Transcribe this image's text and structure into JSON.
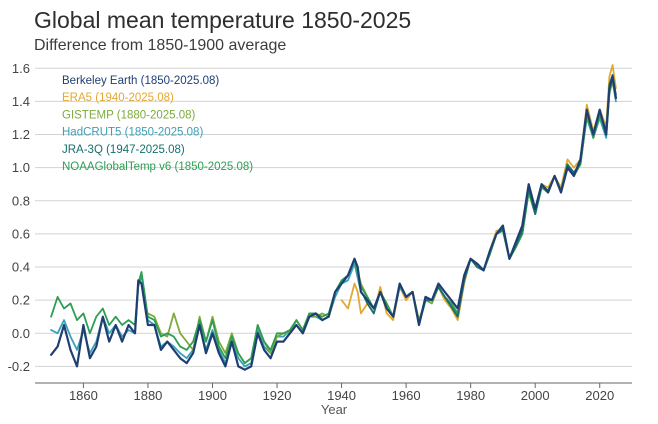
{
  "chart_data": {
    "type": "line",
    "title": "Global mean temperature 1850-2025",
    "subtitle": "Difference from 1850-1900 average",
    "xlabel": "Year",
    "ylabel": "",
    "xlim": [
      1845,
      2030
    ],
    "ylim": [
      -0.3,
      1.65
    ],
    "x_ticks": [
      1860,
      1880,
      1900,
      1920,
      1940,
      1960,
      1980,
      2000,
      2020
    ],
    "y_ticks": [
      -0.2,
      0.0,
      0.2,
      0.4,
      0.6,
      0.8,
      1.0,
      1.2,
      1.4,
      1.6
    ],
    "y_tick_labels": [
      "-0.2",
      "0.0",
      "0.2",
      "0.4",
      "0.6",
      "0.8",
      "1.0",
      "1.2",
      "1.4",
      "1.6"
    ],
    "grid": "horizontal",
    "legend_position": "top-left",
    "series": [
      {
        "name": "Berkeley Earth (1850-2025.08)",
        "color": "#1f3f73",
        "x": [
          1850,
          1852,
          1854,
          1856,
          1858,
          1860,
          1862,
          1864,
          1866,
          1868,
          1870,
          1872,
          1874,
          1876,
          1877,
          1878,
          1880,
          1882,
          1884,
          1886,
          1888,
          1890,
          1892,
          1894,
          1896,
          1898,
          1900,
          1902,
          1904,
          1906,
          1908,
          1910,
          1912,
          1914,
          1916,
          1918,
          1920,
          1922,
          1924,
          1926,
          1928,
          1930,
          1932,
          1934,
          1936,
          1938,
          1940,
          1942,
          1944,
          1945,
          1946,
          1948,
          1950,
          1952,
          1954,
          1956,
          1958,
          1960,
          1962,
          1964,
          1966,
          1968,
          1970,
          1972,
          1974,
          1976,
          1978,
          1980,
          1982,
          1984,
          1986,
          1988,
          1990,
          1992,
          1994,
          1996,
          1998,
          2000,
          2002,
          2004,
          2006,
          2008,
          2010,
          2012,
          2014,
          2016,
          2018,
          2020,
          2022,
          2023,
          2024,
          2025
        ],
        "y": [
          -0.13,
          -0.08,
          0.05,
          -0.1,
          -0.2,
          0.05,
          -0.15,
          -0.08,
          0.1,
          -0.05,
          0.05,
          -0.05,
          0.05,
          0.0,
          0.32,
          0.3,
          0.05,
          0.05,
          -0.1,
          -0.05,
          -0.1,
          -0.15,
          -0.18,
          -0.12,
          0.05,
          -0.12,
          0.0,
          -0.12,
          -0.2,
          -0.05,
          -0.2,
          -0.22,
          -0.2,
          0.0,
          -0.1,
          -0.15,
          -0.05,
          -0.05,
          0.0,
          0.05,
          0.0,
          0.1,
          0.12,
          0.08,
          0.1,
          0.25,
          0.3,
          0.35,
          0.45,
          0.4,
          0.25,
          0.2,
          0.15,
          0.25,
          0.15,
          0.1,
          0.3,
          0.22,
          0.25,
          0.05,
          0.22,
          0.2,
          0.3,
          0.25,
          0.2,
          0.15,
          0.35,
          0.45,
          0.42,
          0.38,
          0.5,
          0.6,
          0.65,
          0.45,
          0.55,
          0.65,
          0.9,
          0.75,
          0.9,
          0.85,
          0.95,
          0.85,
          1.0,
          0.95,
          1.05,
          1.35,
          1.2,
          1.35,
          1.2,
          1.48,
          1.55,
          1.42
        ]
      },
      {
        "name": "ERA5 (1940-2025.08)",
        "color": "#e3a832",
        "x": [
          1940,
          1942,
          1944,
          1945,
          1946,
          1948,
          1950,
          1952,
          1954,
          1956,
          1958,
          1960,
          1962,
          1964,
          1966,
          1968,
          1970,
          1972,
          1974,
          1976,
          1978,
          1980,
          1982,
          1984,
          1986,
          1988,
          1990,
          1992,
          1994,
          1996,
          1998,
          2000,
          2002,
          2004,
          2006,
          2008,
          2010,
          2012,
          2014,
          2016,
          2018,
          2020,
          2022,
          2023,
          2024,
          2025
        ],
        "y": [
          0.2,
          0.15,
          0.3,
          0.25,
          0.12,
          0.18,
          0.12,
          0.28,
          0.12,
          0.08,
          0.28,
          0.2,
          0.25,
          0.05,
          0.2,
          0.2,
          0.28,
          0.2,
          0.15,
          0.08,
          0.3,
          0.45,
          0.4,
          0.38,
          0.5,
          0.62,
          0.62,
          0.45,
          0.52,
          0.6,
          0.88,
          0.72,
          0.9,
          0.88,
          0.95,
          0.88,
          1.05,
          1.0,
          1.05,
          1.38,
          1.22,
          1.35,
          1.25,
          1.55,
          1.62,
          1.48
        ]
      },
      {
        "name": "GISTEMP (1880-2025.08)",
        "color": "#7dab3c",
        "x": [
          1880,
          1882,
          1884,
          1886,
          1888,
          1890,
          1892,
          1894,
          1896,
          1898,
          1900,
          1902,
          1904,
          1906,
          1908,
          1910,
          1912,
          1914,
          1916,
          1918,
          1920,
          1922,
          1924,
          1926,
          1928,
          1930,
          1932,
          1934,
          1936,
          1938,
          1940,
          1942,
          1944,
          1946,
          1948,
          1950,
          1952,
          1954,
          1956,
          1958,
          1960,
          1962,
          1964,
          1966,
          1968,
          1970,
          1972,
          1974,
          1976,
          1978,
          1980,
          1982,
          1984,
          1986,
          1988,
          1990,
          1992,
          1994,
          1996,
          1998,
          2000,
          2002,
          2004,
          2006,
          2008,
          2010,
          2012,
          2014,
          2016,
          2018,
          2020,
          2022,
          2023,
          2024,
          2025
        ],
        "y": [
          0.12,
          0.1,
          0.0,
          -0.02,
          0.12,
          0.0,
          -0.05,
          -0.1,
          0.1,
          -0.05,
          0.1,
          -0.05,
          -0.12,
          0.0,
          -0.12,
          -0.18,
          -0.15,
          0.05,
          -0.05,
          -0.12,
          -0.02,
          0.0,
          0.0,
          0.08,
          0.02,
          0.12,
          0.1,
          0.12,
          0.1,
          0.25,
          0.3,
          0.35,
          0.45,
          0.3,
          0.22,
          0.15,
          0.25,
          0.18,
          0.1,
          0.3,
          0.22,
          0.25,
          0.08,
          0.2,
          0.18,
          0.28,
          0.22,
          0.18,
          0.12,
          0.32,
          0.45,
          0.42,
          0.38,
          0.48,
          0.6,
          0.62,
          0.45,
          0.52,
          0.6,
          0.85,
          0.72,
          0.88,
          0.85,
          0.95,
          0.85,
          1.02,
          0.95,
          1.02,
          1.32,
          1.18,
          1.32,
          1.2,
          1.45,
          1.52,
          1.42
        ]
      },
      {
        "name": "HadCRUT5 (1850-2025.08)",
        "color": "#3aa0b8",
        "x": [
          1850,
          1852,
          1854,
          1856,
          1858,
          1860,
          1862,
          1864,
          1866,
          1868,
          1870,
          1872,
          1874,
          1876,
          1877,
          1878,
          1880,
          1882,
          1884,
          1886,
          1888,
          1890,
          1892,
          1894,
          1896,
          1898,
          1900,
          1902,
          1904,
          1906,
          1908,
          1910,
          1912,
          1914,
          1916,
          1918,
          1920,
          1922,
          1924,
          1926,
          1928,
          1930,
          1932,
          1934,
          1936,
          1938,
          1940,
          1942,
          1944,
          1946,
          1948,
          1950,
          1952,
          1954,
          1956,
          1958,
          1960,
          1962,
          1964,
          1966,
          1968,
          1970,
          1972,
          1974,
          1976,
          1978,
          1980,
          1982,
          1984,
          1986,
          1988,
          1990,
          1992,
          1994,
          1996,
          1998,
          2000,
          2002,
          2004,
          2006,
          2008,
          2010,
          2012,
          2014,
          2016,
          2018,
          2020,
          2022,
          2023,
          2024,
          2025
        ],
        "y": [
          0.02,
          0.0,
          0.08,
          -0.02,
          -0.1,
          0.02,
          -0.12,
          -0.05,
          0.1,
          0.0,
          0.05,
          -0.02,
          0.02,
          0.0,
          0.28,
          0.35,
          0.08,
          0.05,
          -0.08,
          -0.05,
          -0.08,
          -0.12,
          -0.15,
          -0.1,
          0.05,
          -0.1,
          0.02,
          -0.1,
          -0.18,
          -0.05,
          -0.15,
          -0.2,
          -0.18,
          0.02,
          -0.08,
          -0.12,
          -0.02,
          -0.02,
          0.02,
          0.05,
          0.0,
          0.1,
          0.1,
          0.08,
          0.1,
          0.22,
          0.3,
          0.32,
          0.42,
          0.25,
          0.2,
          0.15,
          0.25,
          0.15,
          0.1,
          0.28,
          0.22,
          0.25,
          0.05,
          0.2,
          0.2,
          0.28,
          0.22,
          0.18,
          0.12,
          0.32,
          0.45,
          0.42,
          0.38,
          0.48,
          0.6,
          0.62,
          0.45,
          0.52,
          0.6,
          0.85,
          0.72,
          0.88,
          0.85,
          0.95,
          0.85,
          1.02,
          0.95,
          1.02,
          1.3,
          1.18,
          1.3,
          1.18,
          1.45,
          1.52,
          1.4
        ]
      },
      {
        "name": "JRA-3Q (1947-2025.08)",
        "color": "#176e6e",
        "x": [
          1947,
          1948,
          1950,
          1952,
          1954,
          1956,
          1958,
          1960,
          1962,
          1964,
          1966,
          1968,
          1970,
          1972,
          1974,
          1976,
          1978,
          1980,
          1982,
          1984,
          1986,
          1988,
          1990,
          1992,
          1994,
          1996,
          1998,
          2000,
          2002,
          2004,
          2006,
          2008,
          2010,
          2012,
          2014,
          2016,
          2018,
          2020,
          2022,
          2023,
          2024,
          2025
        ],
        "y": [
          0.22,
          0.18,
          0.12,
          0.25,
          0.15,
          0.1,
          0.3,
          0.22,
          0.25,
          0.06,
          0.2,
          0.2,
          0.28,
          0.22,
          0.16,
          0.1,
          0.32,
          0.45,
          0.4,
          0.38,
          0.5,
          0.6,
          0.63,
          0.45,
          0.53,
          0.62,
          0.88,
          0.72,
          0.9,
          0.86,
          0.95,
          0.86,
          1.02,
          0.97,
          1.03,
          1.35,
          1.2,
          1.34,
          1.22,
          1.5,
          1.56,
          1.44
        ]
      },
      {
        "name": "NOAAGlobalTemp v6 (1850-2025.08)",
        "color": "#2e9e55",
        "x": [
          1850,
          1852,
          1854,
          1856,
          1858,
          1860,
          1862,
          1864,
          1866,
          1868,
          1870,
          1872,
          1874,
          1876,
          1877,
          1878,
          1880,
          1882,
          1884,
          1886,
          1888,
          1890,
          1892,
          1894,
          1896,
          1898,
          1900,
          1902,
          1904,
          1906,
          1908,
          1910,
          1912,
          1914,
          1916,
          1918,
          1920,
          1922,
          1924,
          1926,
          1928,
          1930,
          1932,
          1934,
          1936,
          1938,
          1940,
          1942,
          1944,
          1946,
          1948,
          1950,
          1952,
          1954,
          1956,
          1958,
          1960,
          1962,
          1964,
          1966,
          1968,
          1970,
          1972,
          1974,
          1976,
          1978,
          1980,
          1982,
          1984,
          1986,
          1988,
          1990,
          1992,
          1994,
          1996,
          1998,
          2000,
          2002,
          2004,
          2006,
          2008,
          2010,
          2012,
          2014,
          2016,
          2018,
          2020,
          2022,
          2023,
          2024,
          2025
        ],
        "y": [
          0.1,
          0.22,
          0.15,
          0.18,
          0.08,
          0.12,
          0.0,
          0.1,
          0.15,
          0.05,
          0.1,
          0.05,
          0.08,
          0.05,
          0.3,
          0.37,
          0.1,
          0.08,
          -0.02,
          0.0,
          -0.02,
          -0.08,
          -0.1,
          -0.05,
          0.08,
          -0.05,
          0.08,
          -0.08,
          -0.15,
          -0.02,
          -0.12,
          -0.18,
          -0.15,
          0.05,
          -0.05,
          -0.1,
          0.0,
          0.0,
          0.02,
          0.08,
          0.02,
          0.12,
          0.12,
          0.1,
          0.12,
          0.25,
          0.32,
          0.35,
          0.45,
          0.28,
          0.22,
          0.15,
          0.25,
          0.18,
          0.1,
          0.3,
          0.22,
          0.25,
          0.06,
          0.2,
          0.2,
          0.28,
          0.22,
          0.18,
          0.12,
          0.32,
          0.45,
          0.42,
          0.38,
          0.48,
          0.6,
          0.62,
          0.45,
          0.52,
          0.6,
          0.86,
          0.72,
          0.88,
          0.86,
          0.95,
          0.86,
          1.02,
          0.96,
          1.02,
          1.32,
          1.18,
          1.32,
          1.2,
          1.46,
          1.53,
          1.42
        ]
      }
    ]
  }
}
